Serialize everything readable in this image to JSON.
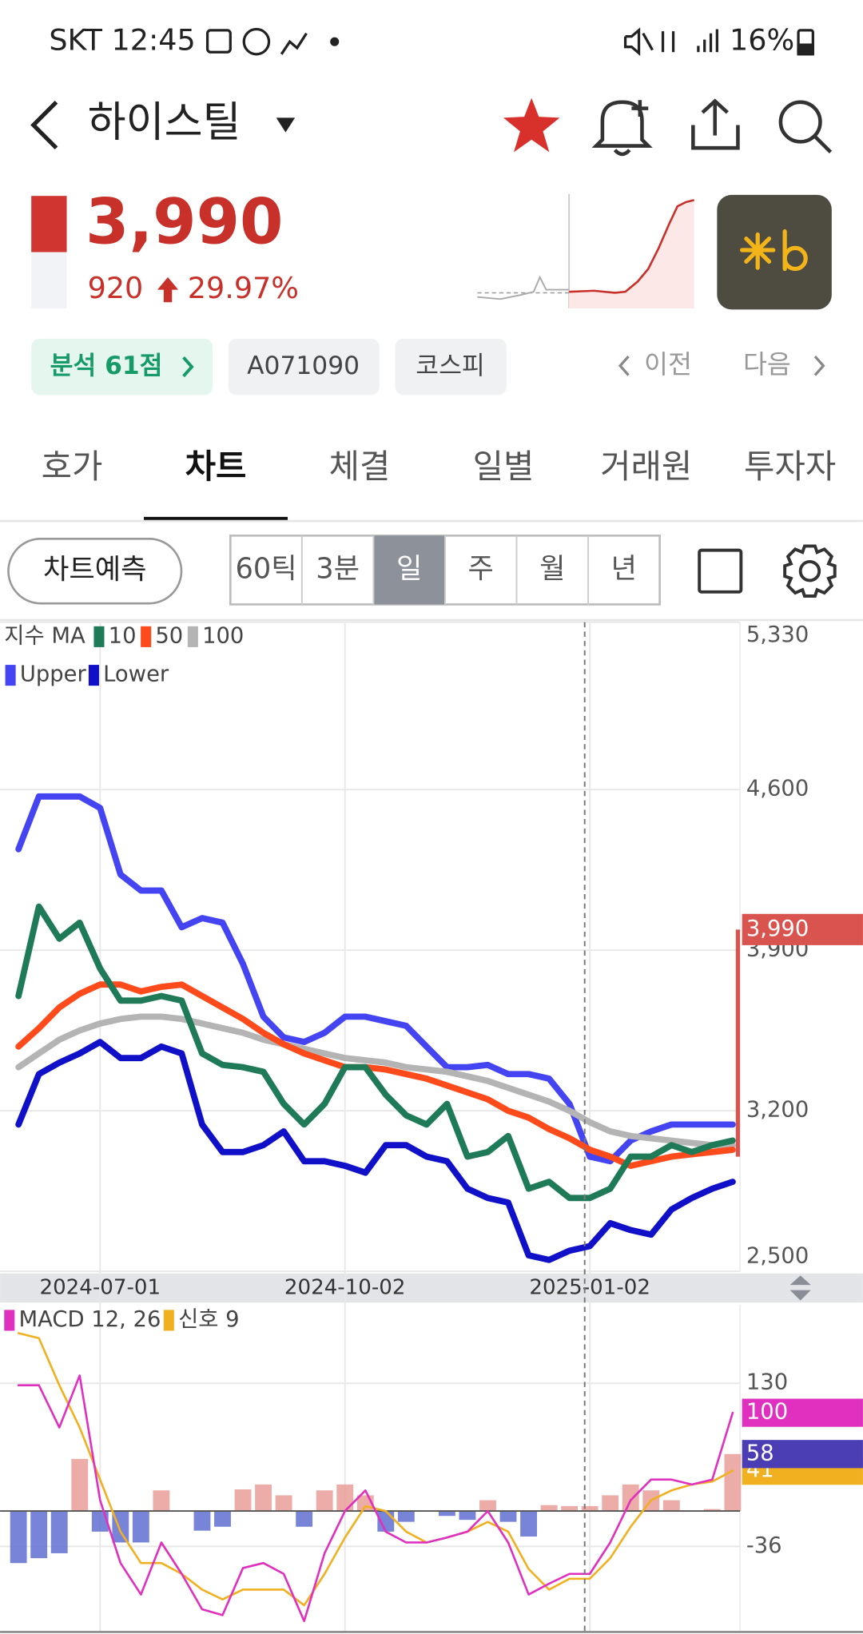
{
  "status_bar": {
    "time": "SKT 12:45",
    "battery": "16%"
  },
  "header": {
    "title": "하이스틸"
  },
  "quote": {
    "price": "3,990",
    "change": "920",
    "change_pct": "29.97%"
  },
  "tags": [
    "분석 61점",
    "A071090",
    "코스피"
  ],
  "nav": {
    "prev": "이전",
    "next": "다음"
  },
  "tabs": {
    "items": [
      "호가",
      "차트",
      "체결",
      "일별",
      "거래원",
      "투자자"
    ],
    "active": 1
  },
  "toolbar": {
    "forecast": "차트예측",
    "periods": [
      "60틱",
      "3분",
      "일",
      "주",
      "월",
      "년"
    ],
    "active": 2
  },
  "chart_data": [
    {
      "type": "line",
      "legend_title": "지수 MA",
      "categories": [
        null,
        null,
        null,
        null,
        "2024-07-01",
        null,
        null,
        null,
        null,
        null,
        null,
        null,
        null,
        null,
        null,
        null,
        "2024-10-02",
        null,
        null,
        null,
        null,
        null,
        null,
        null,
        null,
        null,
        null,
        null,
        "2025-01-02",
        null,
        null,
        null,
        null,
        null,
        null,
        null
      ],
      "series": [
        {
          "name": "10",
          "color": "#1f7a58",
          "values": [
            3700,
            4090,
            3950,
            4020,
            3820,
            3680,
            3680,
            3700,
            3680,
            3450,
            3400,
            3390,
            3370,
            3230,
            3140,
            3230,
            3390,
            3390,
            3270,
            3180,
            3140,
            3230,
            3000,
            3020,
            3090,
            2860,
            2890,
            2820,
            2820,
            2860,
            3000,
            3000,
            3050,
            3020,
            3050,
            3070
          ]
        },
        {
          "name": "50",
          "color": "#ff4a1c",
          "values": [
            3480,
            3560,
            3650,
            3710,
            3750,
            3750,
            3720,
            3740,
            3750,
            3700,
            3650,
            3600,
            3540,
            3490,
            3450,
            3420,
            3390,
            3390,
            3380,
            3360,
            3340,
            3310,
            3280,
            3250,
            3200,
            3170,
            3120,
            3080,
            3030,
            3000,
            2960,
            2980,
            3000,
            3010,
            3020,
            3030
          ]
        },
        {
          "name": "100",
          "color": "#b4b4b4",
          "values": [
            3390,
            3450,
            3510,
            3550,
            3580,
            3600,
            3610,
            3610,
            3600,
            3580,
            3560,
            3540,
            3510,
            3490,
            3470,
            3450,
            3430,
            3420,
            3410,
            3390,
            3380,
            3370,
            3350,
            3330,
            3300,
            3270,
            3240,
            3200,
            3150,
            3110,
            3090,
            3080,
            3070,
            3060,
            3050,
            3050
          ]
        },
        {
          "name": "Upper",
          "color": "#4444f2",
          "values": [
            4340,
            4570,
            4570,
            4570,
            4520,
            4230,
            4160,
            4160,
            4000,
            4040,
            4020,
            3840,
            3610,
            3520,
            3500,
            3540,
            3610,
            3610,
            3590,
            3570,
            3480,
            3390,
            3390,
            3400,
            3360,
            3360,
            3340,
            3230,
            3000,
            2980,
            3070,
            3110,
            3140,
            3140,
            3140,
            3140
          ]
        },
        {
          "name": "Lower",
          "color": "#1010c8",
          "values": [
            3140,
            3360,
            3410,
            3450,
            3500,
            3430,
            3430,
            3480,
            3450,
            3140,
            3020,
            3020,
            3050,
            3110,
            2980,
            2980,
            2960,
            2930,
            3050,
            3050,
            3000,
            2980,
            2860,
            2820,
            2800,
            2570,
            2550,
            2590,
            2610,
            2710,
            2680,
            2660,
            2770,
            2820,
            2860,
            2890
          ]
        }
      ],
      "ylim": [
        2500,
        5330
      ],
      "yticks": [
        {
          "value": 2500,
          "label": "2,500"
        },
        {
          "value": 3200,
          "label": "3,200"
        },
        {
          "value": 3900,
          "label": "3,900"
        },
        {
          "value": 4600,
          "label": "4,600"
        },
        {
          "value": 5330,
          "label": "5,330"
        }
      ],
      "grid": true,
      "current_price": {
        "value": 3990,
        "label": "3,990",
        "color": "#d9534f"
      }
    },
    {
      "type": "line",
      "series": [
        {
          "name": "MACD 12, 26",
          "color": "#e030c0",
          "values": [
            128,
            128,
            85,
            138,
            11,
            -53,
            -85,
            -32,
            -64,
            -100,
            -106,
            -58,
            -53,
            -64,
            -112,
            -43,
            0,
            21,
            -21,
            -32,
            -32,
            -27,
            -21,
            0,
            -32,
            -85,
            -74,
            -64,
            -64,
            -32,
            11,
            32,
            32,
            27,
            32,
            100
          ]
        },
        {
          "name": "신호 9",
          "color": "#f0b020",
          "values": [
            181,
            176,
            128,
            85,
            32,
            -21,
            -53,
            -53,
            -64,
            -80,
            -90,
            -80,
            -80,
            -80,
            -96,
            -64,
            -27,
            5,
            0,
            -21,
            -32,
            -27,
            -21,
            -11,
            -21,
            -59,
            -80,
            -69,
            -69,
            -48,
            -16,
            11,
            21,
            27,
            30,
            41
          ]
        }
      ],
      "histogram": {
        "color": "#4b3db3",
        "up_color": "#e99e98",
        "down_color": "#5f6fd0",
        "values": [
          -53,
          -48,
          -43,
          53,
          -21,
          -32,
          -32,
          21,
          0,
          -20,
          -16,
          22,
          27,
          16,
          -16,
          21,
          27,
          16,
          -21,
          -11,
          0,
          -5,
          -9,
          11,
          -11,
          -26,
          6,
          5,
          5,
          16,
          27,
          21,
          11,
          0,
          2,
          58
        ]
      },
      "ylim": [
        -122,
        210
      ],
      "yticks": [
        130,
        -36
      ]
    }
  ]
}
